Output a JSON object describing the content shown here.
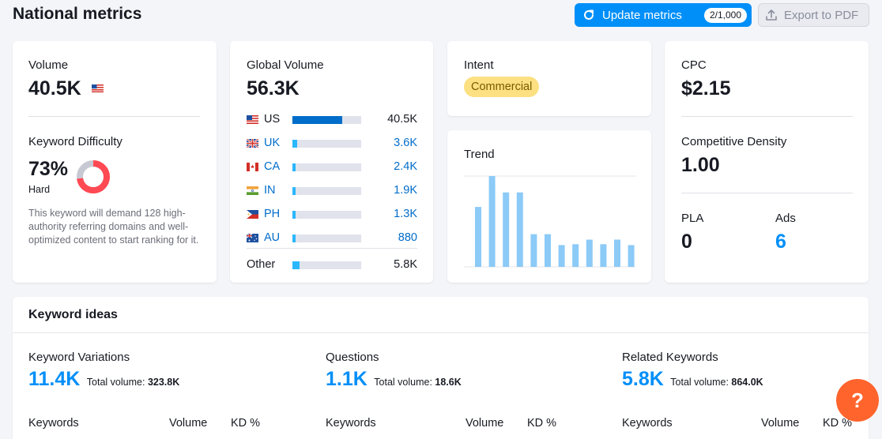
{
  "header": {
    "title": "National metrics",
    "update_label": "Update metrics",
    "update_counter": "2/1,000",
    "export_label": "Export to PDF"
  },
  "volume": {
    "label": "Volume",
    "value": "40.5K",
    "kd_label": "Keyword Difficulty",
    "kd_value": "73%",
    "kd_percent": 73,
    "kd_level": "Hard",
    "kd_description": "This keyword will demand 128 high-authority referring domains and well-optimized content to start ranking for it.",
    "colors": {
      "donut_fill": "#ff4953",
      "donut_track": "#c6c9d2"
    }
  },
  "global": {
    "label": "Global Volume",
    "value": "56.3K",
    "countries": [
      {
        "code": "US",
        "value": "40.5K",
        "share": 0.72,
        "link": false,
        "fill": "#006dca"
      },
      {
        "code": "UK",
        "value": "3.6K",
        "share": 0.064,
        "link": true,
        "fill": "#2bb7ff"
      },
      {
        "code": "CA",
        "value": "2.4K",
        "share": 0.043,
        "link": true,
        "fill": "#2bb7ff"
      },
      {
        "code": "IN",
        "value": "1.9K",
        "share": 0.034,
        "link": true,
        "fill": "#2bb7ff"
      },
      {
        "code": "PH",
        "value": "1.3K",
        "share": 0.023,
        "link": true,
        "fill": "#2bb7ff"
      },
      {
        "code": "AU",
        "value": "880",
        "share": 0.016,
        "link": true,
        "fill": "#2bb7ff"
      }
    ],
    "other": {
      "label": "Other",
      "value": "5.8K",
      "share": 0.103,
      "fill": "#2bb7ff"
    }
  },
  "intent": {
    "label": "Intent",
    "value": "Commercial"
  },
  "trend": {
    "label": "Trend",
    "bar_color": "#8ccaf7",
    "values": [
      0.66,
      1.0,
      0.82,
      0.82,
      0.36,
      0.36,
      0.24,
      0.25,
      0.3,
      0.25,
      0.3,
      0.24
    ]
  },
  "cpc": {
    "label": "CPC",
    "value": "$2.15",
    "density_label": "Competitive Density",
    "density_value": "1.00",
    "pla_label": "PLA",
    "pla_value": "0",
    "ads_label": "Ads",
    "ads_value": "6"
  },
  "ideas": {
    "title": "Keyword ideas",
    "columns": [
      {
        "label": "Keyword Variations",
        "count": "11.4K",
        "tv_label": "Total volume:",
        "tv_value": "323.8K"
      },
      {
        "label": "Questions",
        "count": "1.1K",
        "tv_label": "Total volume:",
        "tv_value": "18.6K"
      },
      {
        "label": "Related Keywords",
        "count": "5.8K",
        "tv_label": "Total volume:",
        "tv_value": "864.0K"
      }
    ],
    "table_headers": {
      "keywords": "Keywords",
      "volume": "Volume",
      "kd": "KD %"
    }
  },
  "help": {
    "label": "?"
  },
  "icons": {
    "refresh": "refresh-icon",
    "export": "upload-icon",
    "help": "question-icon"
  }
}
